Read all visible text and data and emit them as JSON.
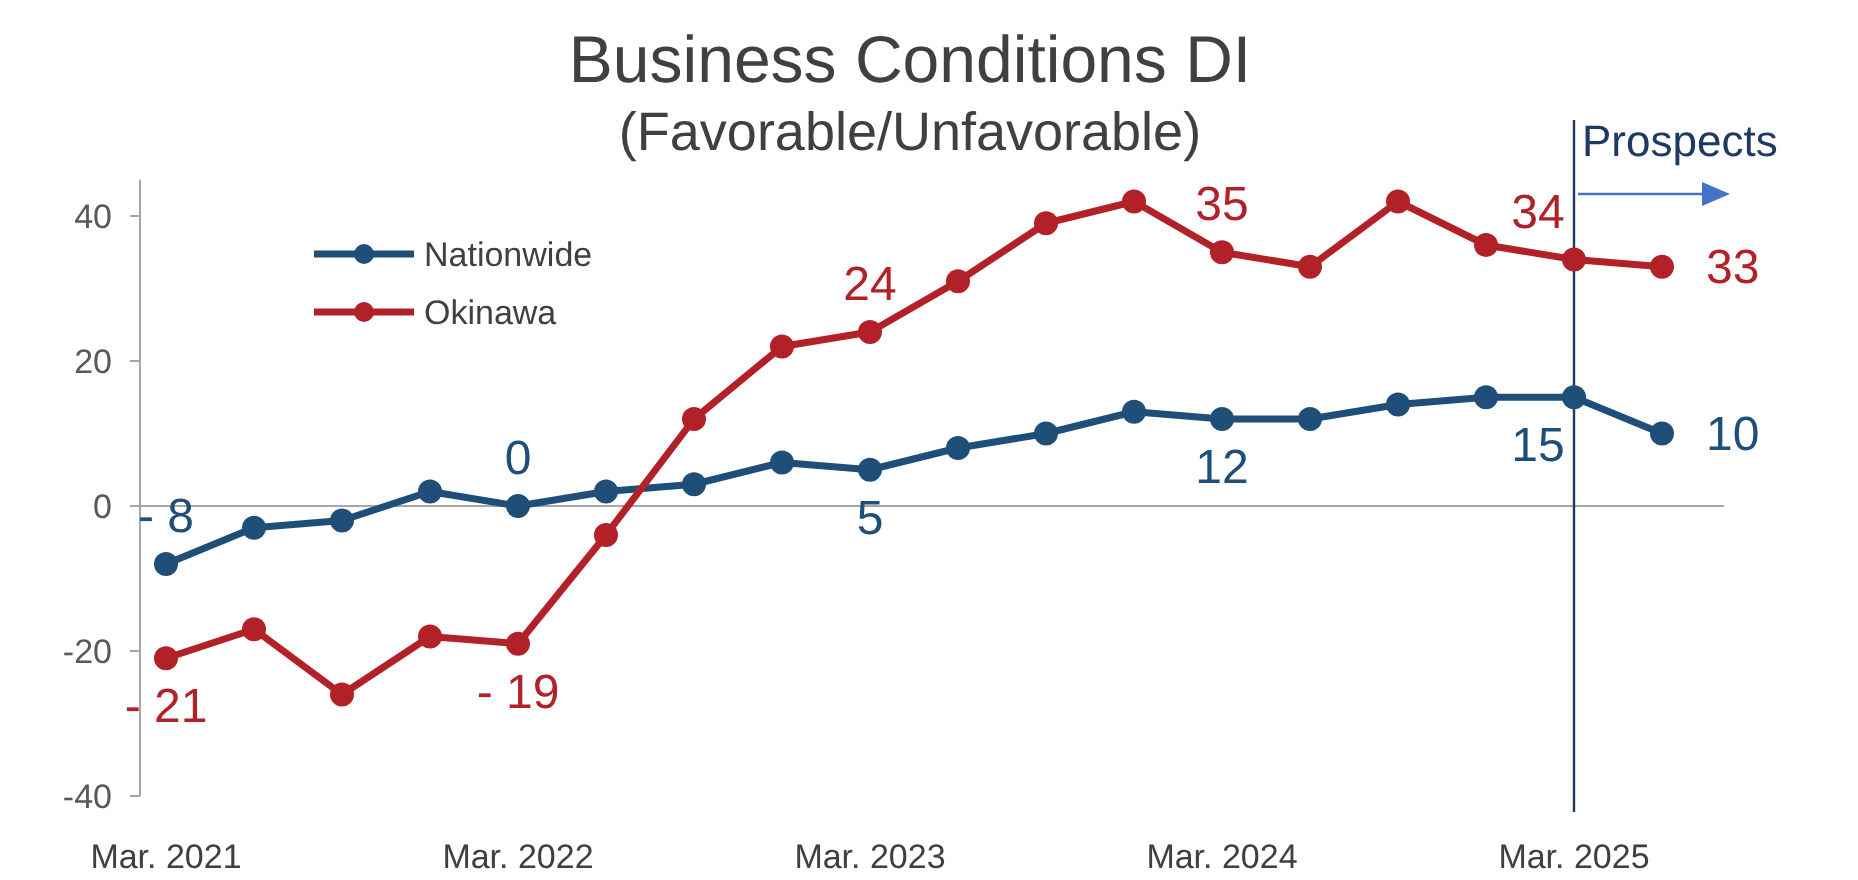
{
  "chart_data": {
    "type": "line",
    "title": "Business Conditions DI",
    "subtitle": "(Favorable/Unfavorable)",
    "categories": [
      "Mar. 2021",
      null,
      null,
      null,
      "Mar. 2022",
      null,
      null,
      null,
      "Mar. 2023",
      null,
      null,
      null,
      "Mar. 2024",
      null,
      null,
      null,
      "Mar. 2025",
      null
    ],
    "series": [
      {
        "name": "Nationwide",
        "color": "#1f4e79",
        "values": [
          -8,
          -3,
          -2,
          2,
          0,
          2,
          3,
          6,
          5,
          8,
          10,
          13,
          12,
          12,
          14,
          15,
          15,
          10
        ],
        "value_labels": [
          "- 8",
          null,
          null,
          null,
          "0",
          null,
          null,
          null,
          "5",
          null,
          null,
          null,
          "12",
          null,
          null,
          null,
          "15",
          "10"
        ]
      },
      {
        "name": "Okinawa",
        "color": "#b22028",
        "values": [
          -21,
          -17,
          -26,
          -18,
          -19,
          -4,
          12,
          22,
          24,
          31,
          39,
          42,
          35,
          33,
          42,
          36,
          34,
          33
        ],
        "value_labels": [
          "- 21",
          null,
          null,
          null,
          "- 19",
          null,
          null,
          null,
          "24",
          null,
          null,
          null,
          "35",
          null,
          null,
          null,
          "34",
          "33"
        ]
      }
    ],
    "ylim": [
      -40,
      45
    ],
    "yticks": [
      -40,
      -20,
      0,
      20,
      40
    ],
    "grid": false,
    "legend": "top left",
    "marker": "circle",
    "line_style": "solid",
    "ref_lines": [
      {
        "axis": "x",
        "value": "Mar. 2025",
        "label": "Prospects",
        "color": "#1f3864"
      }
    ]
  }
}
